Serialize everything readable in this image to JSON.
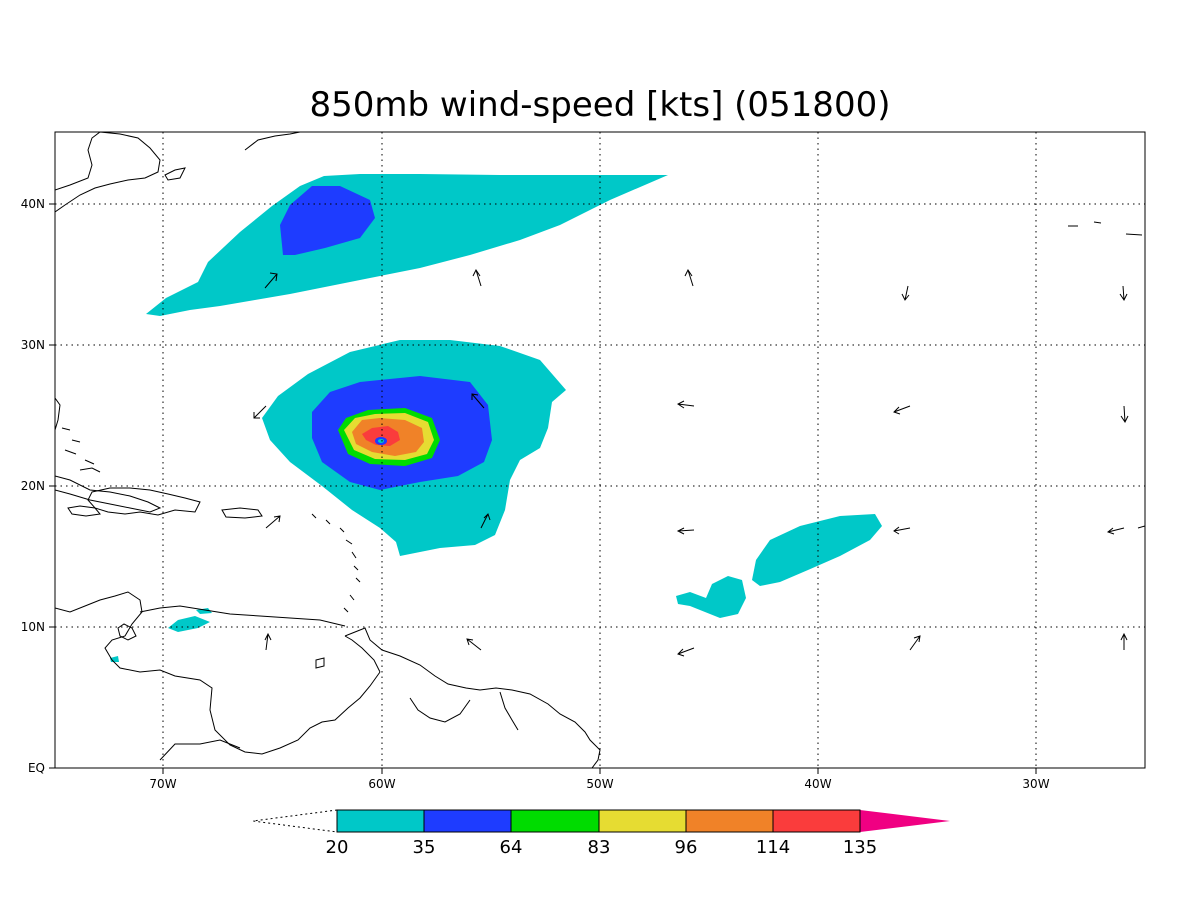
{
  "title": "850mb wind-speed [kts] (051800)",
  "x_tick_labels": [
    "70W",
    "60W",
    "50W",
    "40W",
    "30W"
  ],
  "y_tick_labels": [
    "EQ",
    "10N",
    "20N",
    "30N",
    "40N"
  ],
  "colorbar": {
    "labels": [
      "20",
      "35",
      "64",
      "83",
      "96",
      "114",
      "135"
    ],
    "colors": {
      "20": "#00c8c8",
      "35": "#1e3cff",
      "64": "#00dc00",
      "83": "#e6dc32",
      "96": "#f08228",
      "114": "#fa3c3c",
      "135": "#f00082"
    }
  }
}
